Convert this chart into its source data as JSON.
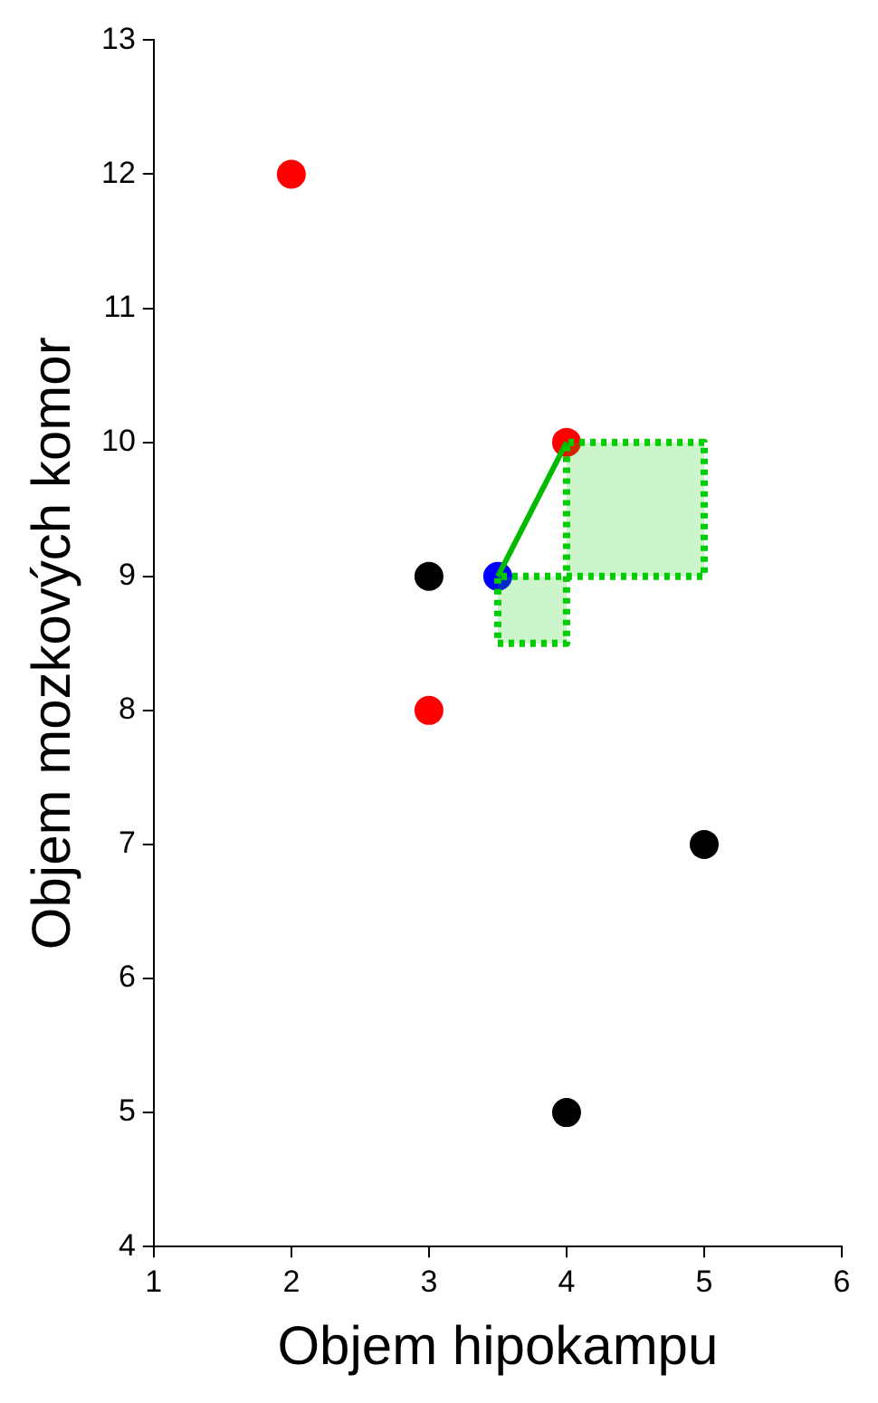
{
  "chart_data": {
    "type": "scatter",
    "xlabel": "Objem hipokampu",
    "ylabel": "Objem mozkových komor",
    "xlim": [
      1,
      6
    ],
    "ylim": [
      4,
      13
    ],
    "xticks": [
      1,
      2,
      3,
      4,
      5,
      6
    ],
    "yticks": [
      4,
      5,
      6,
      7,
      8,
      9,
      10,
      11,
      12,
      13
    ],
    "grid": false,
    "legend": false,
    "marker": "circle",
    "series": [
      {
        "type": "area",
        "color": "#00cc00",
        "line_style": "dotted",
        "marker": "none",
        "x": [
          4,
          5,
          5,
          4,
          4
        ],
        "values": [
          9,
          9,
          10,
          10,
          9
        ]
      },
      {
        "type": "area",
        "color": "#00cc00",
        "line_style": "dotted",
        "marker": "none",
        "x": [
          3.5,
          4,
          4,
          3.5,
          3.5
        ],
        "values": [
          8.5,
          8.5,
          9,
          9,
          8.5
        ]
      },
      {
        "type": "line",
        "color": "#00bb00",
        "line_style": "solid",
        "marker": "none",
        "x": [
          3.5,
          4
        ],
        "values": [
          9,
          10
        ]
      },
      {
        "type": "scatter",
        "color": "#ff0000",
        "x": [
          2,
          4,
          3
        ],
        "values": [
          12,
          10,
          8
        ]
      },
      {
        "type": "scatter",
        "color": "#000000",
        "x": [
          3,
          5,
          4
        ],
        "values": [
          9,
          7,
          5
        ]
      },
      {
        "type": "scatter",
        "color": "#0000ff",
        "x": [
          3.5
        ],
        "values": [
          9
        ]
      }
    ]
  }
}
